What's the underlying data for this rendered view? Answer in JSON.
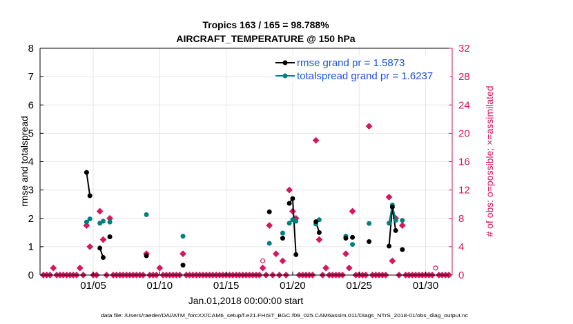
{
  "chart_data": {
    "type": "line",
    "title": "Tropics 163 / 165 = 98.788%",
    "subtitle": "AIRCRAFT_TEMPERATURE @ 150 hPa",
    "xlabel": "Jan.01,2018 00:00:00 start",
    "ylabel_left": "rmse and totalspread",
    "ylabel_right": "# of obs: o=possible; ×=assimilated",
    "footer": "data file: /Users/raeder/DAI/ATM_forcXX/CAM6_setup/f.e21.FHIST_BGC.f09_025.CAM6assim.011/Diags_NTrS_2018-01/obs_diag_output.nc",
    "xlim": [
      1,
      32
    ],
    "ylim_left": [
      0,
      8
    ],
    "ylim_right": [
      0,
      32
    ],
    "x_ticks": [
      5,
      10,
      15,
      20,
      25,
      30
    ],
    "x_tick_labels": [
      "01/05",
      "01/10",
      "01/15",
      "01/20",
      "01/25",
      "01/30"
    ],
    "y_left_ticks": [
      "0",
      "1",
      "2",
      "3",
      "4",
      "5",
      "6",
      "7",
      "8"
    ],
    "y_right_ticks": [
      "0",
      "4",
      "8",
      "12",
      "16",
      "20",
      "24",
      "28",
      "32"
    ],
    "colors": {
      "rmse": "#000000",
      "spread": "#008080",
      "obs": "#d6175e",
      "axis_right": "#d6175e",
      "legend_text": "#1f4fe0"
    },
    "series": [
      {
        "name": "rmse grand pr = 1.5873",
        "key": "rmse",
        "points": [
          [
            4.5,
            3.62
          ],
          [
            4.75,
            2.8
          ],
          [
            5.5,
            0.95
          ],
          [
            5.75,
            0.62
          ],
          [
            6.25,
            1.35
          ],
          [
            9.0,
            0.68
          ],
          [
            11.75,
            0.35
          ],
          [
            18.25,
            2.23
          ],
          [
            19.25,
            1.3
          ],
          [
            19.75,
            2.53
          ],
          [
            20.0,
            2.7
          ],
          [
            20.25,
            0.72
          ],
          [
            21.75,
            1.88
          ],
          [
            22.0,
            1.5
          ],
          [
            24.0,
            1.3
          ],
          [
            24.5,
            1.33
          ],
          [
            25.75,
            1.18
          ],
          [
            27.25,
            1.02
          ],
          [
            27.5,
            2.4
          ],
          [
            27.75,
            1.57
          ],
          [
            28.25,
            0.9
          ]
        ],
        "segments": [
          [
            [
              4.5,
              3.62
            ],
            [
              4.75,
              2.8
            ]
          ],
          [
            [
              5.5,
              0.95
            ],
            [
              5.75,
              0.62
            ]
          ],
          [
            [
              19.75,
              2.53
            ],
            [
              20.0,
              2.7
            ],
            [
              20.25,
              0.72
            ]
          ],
          [
            [
              21.75,
              1.88
            ],
            [
              22.0,
              1.5
            ]
          ],
          [
            [
              27.25,
              1.02
            ],
            [
              27.5,
              2.4
            ],
            [
              27.75,
              1.57
            ]
          ]
        ]
      },
      {
        "name": "totalspread grand pr = 1.6237",
        "key": "spread",
        "points": [
          [
            4.5,
            1.87
          ],
          [
            4.75,
            1.98
          ],
          [
            5.5,
            1.83
          ],
          [
            5.75,
            1.9
          ],
          [
            6.25,
            1.87
          ],
          [
            9.0,
            2.13
          ],
          [
            11.75,
            1.37
          ],
          [
            18.25,
            1.12
          ],
          [
            19.25,
            1.48
          ],
          [
            19.75,
            1.83
          ],
          [
            20.0,
            1.95
          ],
          [
            20.25,
            1.9
          ],
          [
            21.75,
            1.8
          ],
          [
            22.0,
            1.95
          ],
          [
            24.0,
            1.37
          ],
          [
            24.5,
            1.08
          ],
          [
            25.75,
            1.82
          ],
          [
            27.25,
            1.83
          ],
          [
            27.5,
            2.47
          ],
          [
            27.75,
            1.93
          ],
          [
            28.25,
            1.93
          ]
        ],
        "segments": [
          [
            [
              4.5,
              1.87
            ],
            [
              4.75,
              1.98
            ]
          ],
          [
            [
              5.5,
              1.83
            ],
            [
              5.75,
              1.9
            ]
          ],
          [
            [
              19.75,
              1.83
            ],
            [
              20.0,
              1.95
            ],
            [
              20.25,
              1.9
            ]
          ],
          [
            [
              21.75,
              1.8
            ],
            [
              22.0,
              1.95
            ]
          ],
          [
            [
              27.25,
              1.83
            ],
            [
              27.5,
              2.47
            ],
            [
              27.75,
              1.93
            ]
          ]
        ]
      }
    ],
    "obs_assimilated": [
      [
        2.0,
        1
      ],
      [
        4.0,
        1
      ],
      [
        4.5,
        7
      ],
      [
        4.75,
        4
      ],
      [
        5.5,
        9
      ],
      [
        5.75,
        5
      ],
      [
        6.25,
        8
      ],
      [
        9.0,
        3
      ],
      [
        10.0,
        1
      ],
      [
        11.75,
        3
      ],
      [
        17.75,
        1
      ],
      [
        18.25,
        7
      ],
      [
        18.75,
        3
      ],
      [
        19.25,
        2
      ],
      [
        19.75,
        12
      ],
      [
        20.0,
        9
      ],
      [
        20.25,
        8
      ],
      [
        21.75,
        19
      ],
      [
        22.0,
        5
      ],
      [
        22.5,
        1
      ],
      [
        24.0,
        3
      ],
      [
        24.25,
        1
      ],
      [
        24.5,
        9
      ],
      [
        25.75,
        21
      ],
      [
        27.25,
        11
      ],
      [
        27.5,
        2
      ],
      [
        27.75,
        8
      ],
      [
        28.25,
        7
      ]
    ],
    "obs_possible_nonzero": [
      [
        17.75,
        2
      ],
      [
        30.75,
        1
      ]
    ],
    "obs_zero_x": [
      1.25,
      1.5,
      1.75,
      2.25,
      2.5,
      2.75,
      3.0,
      3.25,
      3.5,
      3.75,
      4.25,
      5.0,
      5.25,
      6.0,
      6.5,
      6.75,
      7.0,
      7.25,
      7.5,
      7.75,
      8.0,
      8.25,
      8.5,
      8.75,
      9.25,
      9.5,
      9.75,
      10.25,
      10.5,
      10.75,
      11.0,
      11.25,
      11.5,
      12.0,
      12.25,
      12.5,
      12.75,
      13.0,
      13.25,
      13.5,
      13.75,
      14.0,
      14.25,
      14.5,
      14.75,
      15.0,
      15.25,
      15.5,
      15.75,
      16.0,
      16.25,
      16.5,
      16.75,
      17.0,
      17.25,
      17.5,
      18.0,
      18.5,
      19.0,
      19.5,
      20.5,
      20.75,
      21.0,
      21.25,
      21.5,
      22.25,
      22.75,
      23.0,
      23.25,
      23.5,
      23.75,
      24.75,
      25.0,
      25.25,
      25.5,
      26.0,
      26.25,
      26.5,
      26.75,
      27.0,
      28.0,
      28.5,
      28.75,
      29.0,
      29.25,
      29.5,
      29.75,
      30.0,
      30.25,
      30.5,
      31.0,
      31.25,
      31.5,
      31.75
    ]
  }
}
